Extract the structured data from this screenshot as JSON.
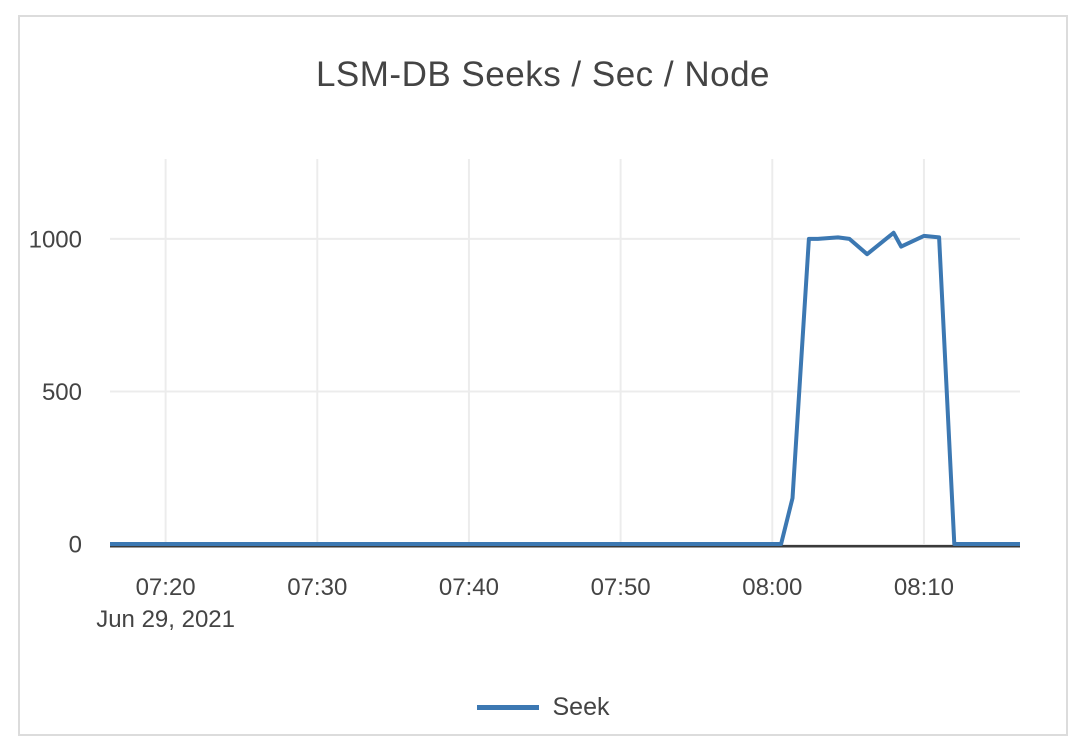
{
  "chart_data": {
    "type": "line",
    "title": "LSM-DB Seeks / Sec / Node",
    "x_axis": {
      "date_label": "Jun 29, 2021",
      "ticks": [
        "07:20",
        "07:30",
        "07:40",
        "07:50",
        "08:00",
        "08:10"
      ],
      "range_times": [
        "07:16:20",
        "08:16:20"
      ],
      "grid": true
    },
    "y_axis": {
      "ticks": [
        0,
        500,
        1000
      ],
      "range": [
        0,
        1262
      ],
      "grid": true,
      "zeroline": true
    },
    "legend_position": "bottom",
    "series": [
      {
        "name": "Seek",
        "color": "#3c78b2",
        "points": [
          {
            "t": "07:16:20",
            "v": 0
          },
          {
            "t": "08:00:35",
            "v": 0
          },
          {
            "t": "08:01:20",
            "v": 150
          },
          {
            "t": "08:02:25",
            "v": 1000
          },
          {
            "t": "08:03:00",
            "v": 1000
          },
          {
            "t": "08:04:20",
            "v": 1005
          },
          {
            "t": "08:05:05",
            "v": 1000
          },
          {
            "t": "08:06:15",
            "v": 950
          },
          {
            "t": "08:08:00",
            "v": 1020
          },
          {
            "t": "08:08:30",
            "v": 975
          },
          {
            "t": "08:10:00",
            "v": 1010
          },
          {
            "t": "08:11:00",
            "v": 1005
          },
          {
            "t": "08:12:00",
            "v": 0
          },
          {
            "t": "08:16:20",
            "v": 0
          }
        ]
      }
    ]
  },
  "colors": {
    "line": "#3c78b2",
    "grid": "#ececec",
    "zero_line": "#3a3a3a",
    "text": "#444444",
    "card_border": "#dcdcdc",
    "background": "#ffffff"
  }
}
